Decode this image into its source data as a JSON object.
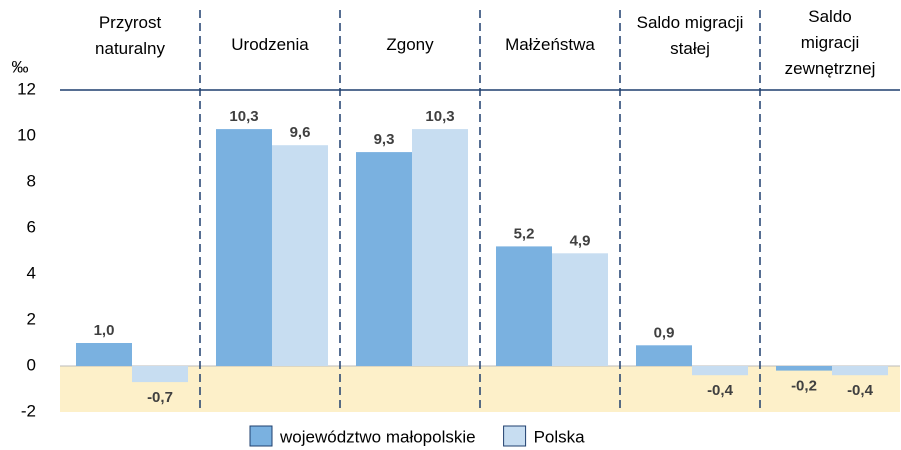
{
  "chart_data": {
    "type": "bar",
    "ylabel": "‰",
    "categories": [
      "Przyrost\nnaturalny",
      "Urodzenia",
      "Zgony",
      "Małżeństwa",
      "Saldo migracji\nstałej",
      "Saldo\nmigracji\nzewnętrznej"
    ],
    "series": [
      {
        "name": "województwo małopolskie",
        "color": "#7ab1e0",
        "values": [
          1.0,
          10.3,
          9.3,
          5.2,
          0.9,
          -0.2
        ],
        "value_labels": [
          "1,0",
          "10,3",
          "9,3",
          "5,2",
          "0,9",
          "-0,2"
        ]
      },
      {
        "name": "Polska",
        "color": "#c7ddf1",
        "values": [
          -0.7,
          9.6,
          10.3,
          4.9,
          -0.4,
          -0.4
        ],
        "value_labels": [
          "-0,7",
          "9,6",
          "10,3",
          "4,9",
          "-0,4",
          "-0,4"
        ]
      }
    ],
    "ylim": [
      -2,
      12
    ],
    "yticks": [
      -2,
      0,
      2,
      4,
      6,
      8,
      10,
      12
    ],
    "negative_band_color": "#fdf0c9",
    "legend": "bottom"
  }
}
